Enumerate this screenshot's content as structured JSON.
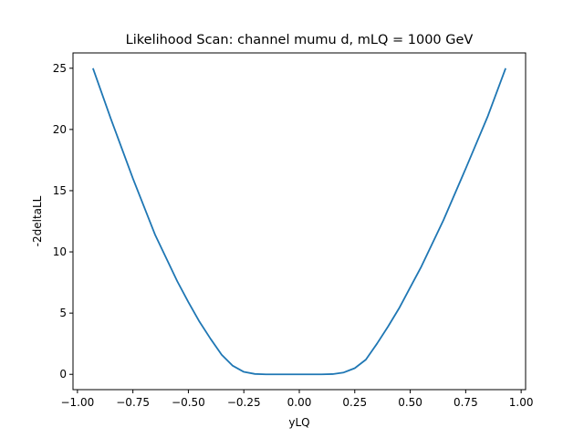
{
  "chart_data": {
    "type": "line",
    "title": "Likelihood Scan: channel mumu d, mLQ = 1000 GeV",
    "xlabel": "yLQ",
    "ylabel": "-2deltaLL",
    "xlim": [
      -1.02,
      1.02
    ],
    "ylim": [
      -1.25,
      26.25
    ],
    "x_ticks": [
      -1.0,
      -0.75,
      -0.5,
      -0.25,
      0.0,
      0.25,
      0.5,
      0.75,
      1.0
    ],
    "x_tick_labels": [
      "−1.00",
      "−0.75",
      "−0.50",
      "−0.25",
      "0.00",
      "0.25",
      "0.50",
      "0.75",
      "1.00"
    ],
    "y_ticks": [
      0,
      5,
      10,
      15,
      20,
      25
    ],
    "y_tick_labels": [
      "0",
      "5",
      "10",
      "15",
      "20",
      "25"
    ],
    "grid": false,
    "series": [
      {
        "color": "#1f77b4",
        "x": [
          -0.93,
          -0.85,
          -0.75,
          -0.65,
          -0.55,
          -0.5,
          -0.45,
          -0.4,
          -0.35,
          -0.3,
          -0.25,
          -0.2,
          -0.15,
          -0.1,
          -0.05,
          0.0,
          0.05,
          0.1,
          0.15,
          0.2,
          0.25,
          0.3,
          0.35,
          0.4,
          0.45,
          0.5,
          0.55,
          0.65,
          0.75,
          0.85,
          0.93
        ],
        "y": [
          25.0,
          20.9,
          16.0,
          11.4,
          7.6,
          5.9,
          4.3,
          2.9,
          1.6,
          0.7,
          0.2,
          0.03,
          0.0,
          0.0,
          0.0,
          0.0,
          0.0,
          0.0,
          0.02,
          0.15,
          0.5,
          1.2,
          2.5,
          3.9,
          5.4,
          7.1,
          8.8,
          12.6,
          16.8,
          21.1,
          25.0
        ]
      }
    ]
  }
}
